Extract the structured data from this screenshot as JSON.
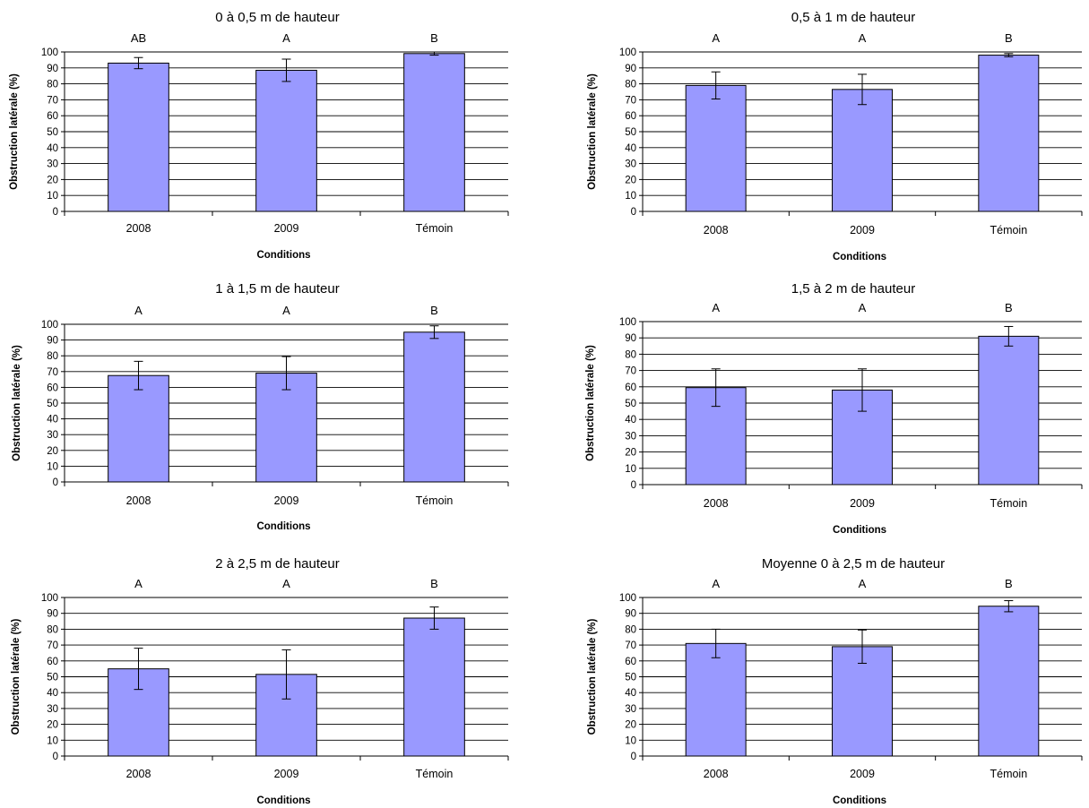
{
  "chart_data": [
    {
      "type": "bar",
      "title": "0 à 0,5 m de hauteur",
      "xlabel": "Conditions",
      "ylabel": "Obstruction latérale (%)",
      "ylim": [
        0,
        100
      ],
      "yticks": [
        "0",
        "10",
        "20",
        "30",
        "40",
        "50",
        "60",
        "70",
        "80",
        "90",
        "100"
      ],
      "categories": [
        "2008",
        "2009",
        "Témoin"
      ],
      "values": [
        93,
        88.5,
        99
      ],
      "error": [
        3.5,
        7,
        1
      ],
      "significance": [
        "AB",
        "A",
        "B"
      ],
      "grid": true
    },
    {
      "type": "bar",
      "title": "0,5 à 1 m de hauteur",
      "xlabel": "Conditions",
      "ylabel": "Obstruction latérale (%)",
      "ylim": [
        0,
        100
      ],
      "yticks": [
        "0",
        "10",
        "20",
        "30",
        "40",
        "50",
        "60",
        "70",
        "80",
        "90",
        "100"
      ],
      "categories": [
        "2008",
        "2009",
        "Témoin"
      ],
      "values": [
        79,
        76.5,
        98
      ],
      "error": [
        8.5,
        9.5,
        1
      ],
      "significance": [
        "A",
        "A",
        "B"
      ],
      "grid": true
    },
    {
      "type": "bar",
      "title": "1 à 1,5 m de hauteur",
      "xlabel": "Conditions",
      "ylabel": "Obstruction latérale (%)",
      "ylim": [
        0,
        100
      ],
      "yticks": [
        "0",
        "10",
        "20",
        "30",
        "40",
        "50",
        "60",
        "70",
        "80",
        "90",
        "100"
      ],
      "categories": [
        "2008",
        "2009",
        "Témoin"
      ],
      "values": [
        67.5,
        69,
        95
      ],
      "error": [
        9,
        10.5,
        4
      ],
      "significance": [
        "A",
        "A",
        "B"
      ],
      "grid": true
    },
    {
      "type": "bar",
      "title": "1,5 à 2 m de hauteur",
      "xlabel": "Conditions",
      "ylabel": "Obstruction latérale (%)",
      "ylim": [
        0,
        100
      ],
      "yticks": [
        "0",
        "10",
        "20",
        "30",
        "40",
        "50",
        "60",
        "70",
        "80",
        "90",
        "100"
      ],
      "categories": [
        "2008",
        "2009",
        "Témoin"
      ],
      "values": [
        59.5,
        58,
        91
      ],
      "error": [
        11.5,
        13,
        6
      ],
      "significance": [
        "A",
        "A",
        "B"
      ],
      "grid": true
    },
    {
      "type": "bar",
      "title": "2 à 2,5 m de hauteur",
      "xlabel": "Conditions",
      "ylabel": "Obstruction latérale (%)",
      "ylim": [
        0,
        100
      ],
      "yticks": [
        "0",
        "10",
        "20",
        "30",
        "40",
        "50",
        "60",
        "70",
        "80",
        "90",
        "100"
      ],
      "categories": [
        "2008",
        "2009",
        "Témoin"
      ],
      "values": [
        55,
        51.5,
        87
      ],
      "error": [
        13,
        15.5,
        7
      ],
      "significance": [
        "A",
        "A",
        "B"
      ],
      "grid": true
    },
    {
      "type": "bar",
      "title": "Moyenne 0 à 2,5 m de hauteur",
      "xlabel": "Conditions",
      "ylabel": "Obstruction latérale (%)",
      "ylim": [
        0,
        100
      ],
      "yticks": [
        "0",
        "10",
        "20",
        "30",
        "40",
        "50",
        "60",
        "70",
        "80",
        "90",
        "100"
      ],
      "categories": [
        "2008",
        "2009",
        "Témoin"
      ],
      "values": [
        71,
        69,
        94.5
      ],
      "error": [
        9,
        10.5,
        3.5
      ],
      "significance": [
        "A",
        "A",
        "B"
      ],
      "grid": true
    }
  ],
  "colors": {
    "bar_fill": "#9999ff",
    "bar_stroke": "#000000",
    "grid": "#000000",
    "background": "#ffffff"
  }
}
